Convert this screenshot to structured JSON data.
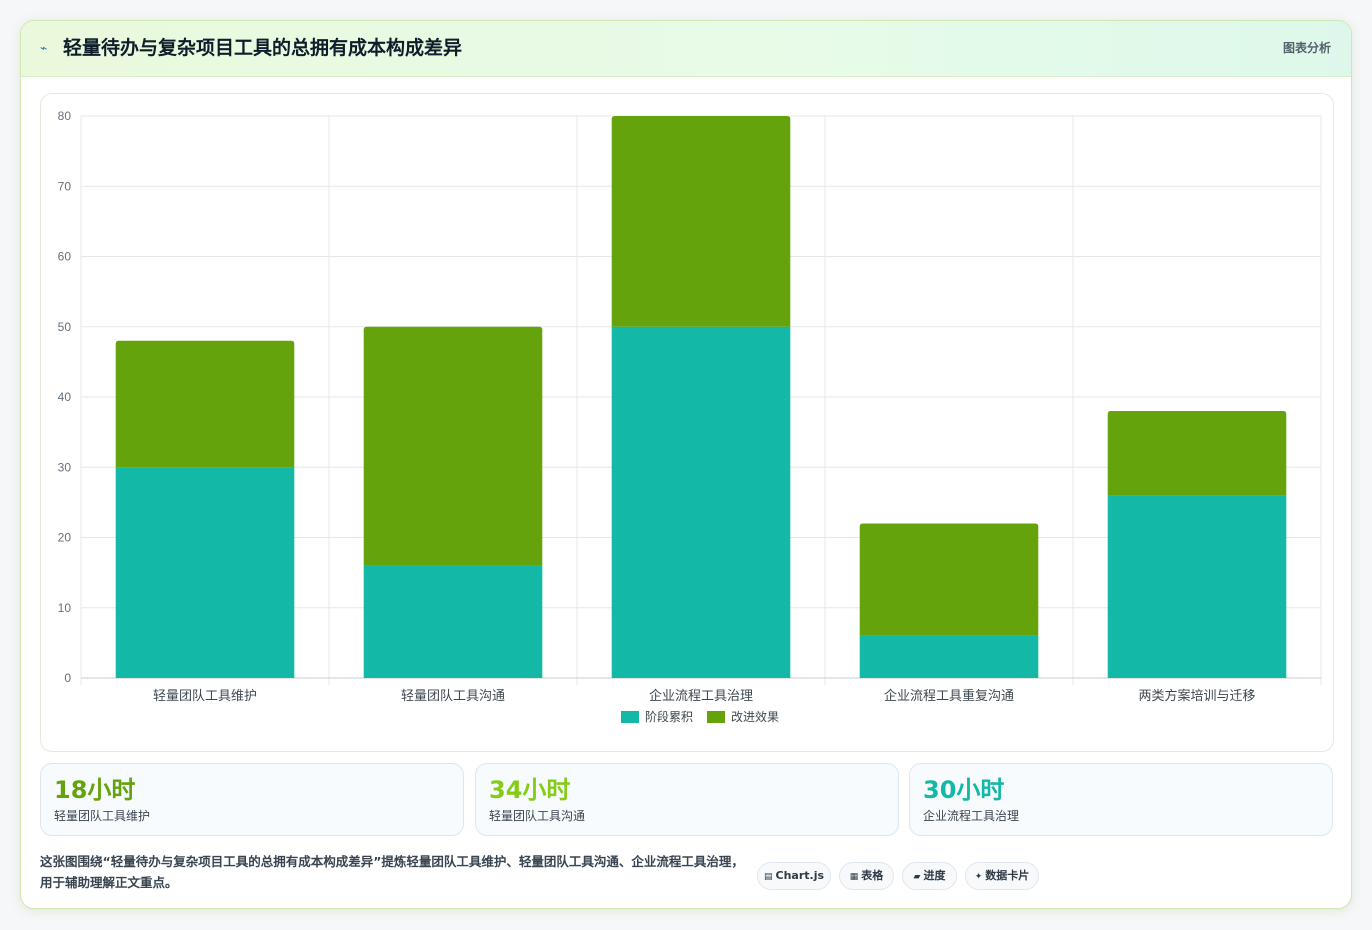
{
  "header": {
    "icon": "chart-line-icon",
    "title": "轻量待办与复杂项目工具的总拥有成本构成差异",
    "tag": "图表分析"
  },
  "chart_data": {
    "type": "bar",
    "stacked": true,
    "categories": [
      "轻量团队工具维护",
      "轻量团队工具沟通",
      "企业流程工具治理",
      "企业流程工具重复沟通",
      "两类方案培训与迁移"
    ],
    "series": [
      {
        "name": "阶段累积",
        "color": "#14b8a6",
        "values": [
          30,
          16,
          50,
          6,
          26
        ]
      },
      {
        "name": "改进效果",
        "color": "#65a30d",
        "values": [
          18,
          34,
          30,
          16,
          12
        ]
      }
    ],
    "ylim": [
      0,
      80
    ],
    "yticks": [
      0,
      10,
      20,
      30,
      40,
      50,
      60,
      70,
      80
    ],
    "grid": true,
    "legend_position": "bottom"
  },
  "stats": [
    {
      "value": "18小时",
      "label": "轻量团队工具维护",
      "color": "#65a30d"
    },
    {
      "value": "34小时",
      "label": "轻量团队工具沟通",
      "color": "#84cc16"
    },
    {
      "value": "30小时",
      "label": "企业流程工具治理",
      "color": "#14b8a6"
    }
  ],
  "footer": {
    "text": "这张图围绕“轻量待办与复杂项目工具的总拥有成本构成差异”提炼轻量团队工具维护、轻量团队工具沟通、企业流程工具治理，用于辅助理解正文重点。"
  },
  "chips": [
    {
      "icon": "▤",
      "icon_name": "chart-icon",
      "label": "Chart.js"
    },
    {
      "icon": "▦",
      "icon_name": "table-icon",
      "label": "表格"
    },
    {
      "icon": "▰",
      "icon_name": "progress-icon",
      "label": "进度"
    },
    {
      "icon": "✦",
      "icon_name": "sparkle-icon",
      "label": "数据卡片"
    }
  ]
}
